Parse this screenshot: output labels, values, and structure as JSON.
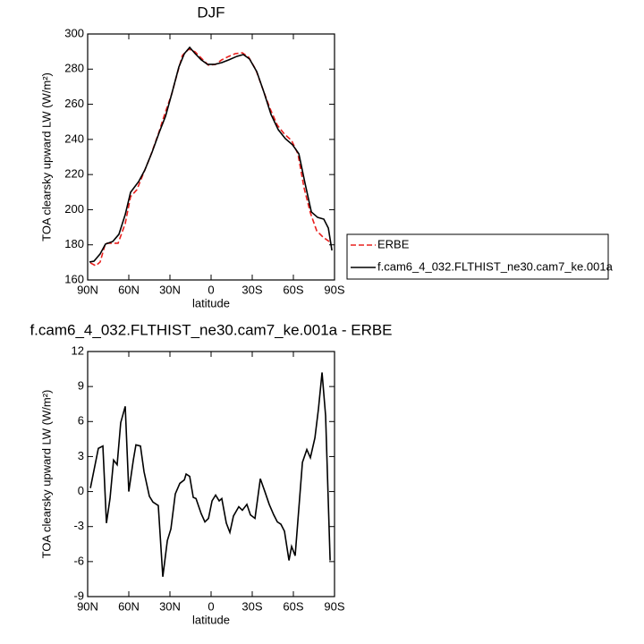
{
  "chart_data": [
    {
      "type": "line",
      "title": "DJF",
      "xlabel": "latitude",
      "ylabel": "TOA clearsky upward LW (W/m²)",
      "xlim": [
        90,
        -90
      ],
      "xticks": [
        {
          "value": 90,
          "label": "90N"
        },
        {
          "value": 60,
          "label": "60N"
        },
        {
          "value": 30,
          "label": "30N"
        },
        0,
        {
          "value": -30,
          "label": "30S"
        },
        {
          "value": -60,
          "label": "60S"
        },
        {
          "value": -90,
          "label": "90S"
        }
      ],
      "ylim": [
        160,
        300
      ],
      "yticks": [
        160,
        180,
        200,
        220,
        240,
        260,
        280,
        300
      ],
      "legend": "right",
      "series": [
        {
          "name": "ERBE",
          "color": "#e8201e",
          "line_style": "dashed",
          "x": [
            88,
            84.1,
            80.9,
            77,
            72.4,
            67.8,
            62.6,
            58.7,
            54.1,
            49.6,
            44.3,
            38.5,
            33.9,
            28.7,
            24.8,
            20.9,
            16.3,
            11.6,
            7.2,
            1.9,
            -3.3,
            -7.8,
            -13,
            -17.6,
            -22.8,
            -27.4,
            -32.6,
            -37.8,
            -43.1,
            -48.3,
            -53.5,
            -58.7,
            -63.3,
            -67.8,
            -72.4,
            -77,
            -81.6,
            -86.1
          ],
          "values": [
            169.7,
            168.1,
            170.2,
            180.9,
            180.9,
            180.9,
            192.1,
            207.4,
            211.4,
            220.1,
            230.3,
            243,
            254.2,
            265.9,
            277.1,
            287.8,
            291.4,
            289.8,
            286.3,
            282.2,
            282.7,
            285.3,
            287.3,
            288.8,
            289.3,
            286.8,
            279.7,
            268.5,
            257.3,
            248.1,
            243,
            239.4,
            231.8,
            212.4,
            198.2,
            188,
            184.4,
            181.9
          ]
        },
        {
          "name": "f.cam6_4_032.FLTHIST_ne30.cam7_ke.001a",
          "color": "#000000",
          "line_style": "solid",
          "x": [
            88.7,
            85.4,
            80.9,
            77,
            71.7,
            67.2,
            62.6,
            58.7,
            52.8,
            48.3,
            43,
            37.8,
            33.2,
            28.7,
            23.5,
            19.5,
            15.6,
            11.6,
            7.2,
            2.6,
            -2.6,
            -7.8,
            -13,
            -18.9,
            -23.5,
            -28,
            -33.3,
            -38.5,
            -43.7,
            -49,
            -54.2,
            -59.4,
            -64,
            -68.5,
            -73.1,
            -77.7,
            -82.2,
            -85.5,
            -88.1
          ],
          "values": [
            170.2,
            170.7,
            174.8,
            180.4,
            181.9,
            186,
            197.2,
            209.9,
            216,
            222.6,
            232.8,
            244,
            253.2,
            265.9,
            281.2,
            288.8,
            292.4,
            288.8,
            285.3,
            282.7,
            282.7,
            283.7,
            285.3,
            287.3,
            288.3,
            285.8,
            278.6,
            266.9,
            254.2,
            245.5,
            240.4,
            236.9,
            231.8,
            215,
            198.7,
            195.6,
            194.6,
            189.5,
            176.8
          ]
        }
      ]
    },
    {
      "type": "line",
      "title": "f.cam6_4_032.FLTHIST_ne30.cam7_ke.001a - ERBE",
      "xlabel": "latitude",
      "ylabel": "TOA clearsky upward LW (W/m²)",
      "xlim": [
        90,
        -90
      ],
      "xticks": [
        {
          "value": 90,
          "label": "90N"
        },
        {
          "value": 60,
          "label": "60N"
        },
        {
          "value": 30,
          "label": "30N"
        },
        0,
        {
          "value": -30,
          "label": "30S"
        },
        {
          "value": -60,
          "label": "60S"
        },
        {
          "value": -90,
          "label": "90S"
        }
      ],
      "ylim": [
        -9,
        12
      ],
      "yticks": [
        -9,
        -6,
        -3,
        0,
        3,
        6,
        9,
        12
      ],
      "series": [
        {
          "color": "#000000",
          "line_style": "solid",
          "x": [
            88,
            82.2,
            78.9,
            76.3,
            73.7,
            71.1,
            68.5,
            65.9,
            62.6,
            60,
            56.7,
            54.8,
            51.5,
            48.9,
            45,
            42.4,
            38.5,
            35.2,
            31.9,
            29.3,
            26.1,
            22.8,
            19.5,
            18.2,
            15.6,
            13,
            11,
            7.2,
            4.5,
            1.9,
            -0.7,
            -3.3,
            -5.9,
            -7.8,
            -11.1,
            -13.7,
            -16.3,
            -20.2,
            -22.8,
            -26.1,
            -28.7,
            -32,
            -35.9,
            -39.2,
            -42.4,
            -45.7,
            -48.3,
            -50.9,
            -53.5,
            -56.8,
            -58.7,
            -61.3,
            -66.6,
            -69.8,
            -72.4,
            -75.7,
            -78.3,
            -80.9,
            -83.5,
            -86.8
          ],
          "values": [
            0.3,
            3.7,
            3.9,
            -2.7,
            -0.6,
            2.7,
            2.3,
            5.9,
            7.3,
            0,
            2.7,
            4.0,
            3.9,
            1.7,
            -0.4,
            -0.9,
            -1.2,
            -7.3,
            -4.2,
            -3.2,
            -0.2,
            0.7,
            1.0,
            1.5,
            1.3,
            -0.5,
            -0.6,
            -1.9,
            -2.6,
            -2.3,
            -0.8,
            -0.3,
            -0.8,
            -0.6,
            -2.7,
            -3.5,
            -2.1,
            -1.3,
            -1.6,
            -1.1,
            -2.0,
            -2.3,
            1.1,
            0,
            -1.1,
            -2.0,
            -2.6,
            -2.8,
            -3.4,
            -5.9,
            -4.7,
            -5.5,
            2.5,
            3.6,
            2.9,
            4.6,
            7.1,
            10.2,
            6.5,
            -5.9
          ]
        }
      ]
    }
  ]
}
